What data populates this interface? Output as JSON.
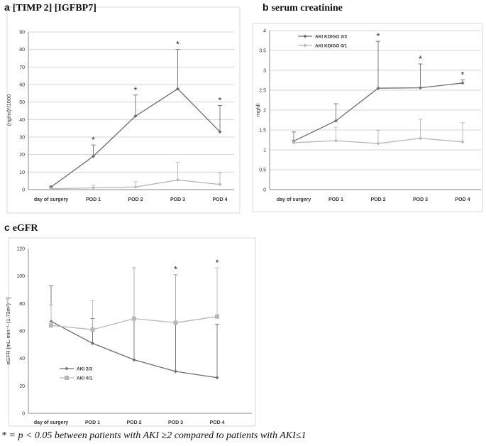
{
  "footnote": "* = p < 0.05 between patients with AKI ≥2 compared to patients with AKI≤1",
  "colors": {
    "dark": "#6d6d6d",
    "light": "#b7b7b7",
    "grid": "#d4d4d4",
    "axis": "#888888"
  },
  "chart_data": [
    {
      "panel_letter": "a",
      "title": "[TIMP 2] [IGFBP7]",
      "type": "line",
      "categories": [
        "day of surgery",
        "POD 1",
        "POD 2",
        "POD 3",
        "POD 4"
      ],
      "ylabel": "(ng/ml)²/1000",
      "ylim": [
        0,
        90
      ],
      "yticks": [
        0,
        10,
        20,
        30,
        40,
        50,
        60,
        70,
        80,
        90
      ],
      "ytick_labels": [
        "0",
        "10",
        "20",
        "30",
        "40",
        "50",
        "60",
        "70",
        "80",
        "90"
      ],
      "grid": true,
      "legend": null,
      "series": [
        {
          "color": "dark",
          "marker": "diamond",
          "values": [
            1.5,
            19,
            42,
            57.5,
            33
          ],
          "err_upper": [
            2,
            25.5,
            54,
            80,
            48
          ]
        },
        {
          "color": "light",
          "marker": "diamond",
          "values": [
            0.5,
            1,
            1.5,
            5.5,
            3
          ],
          "err_upper": [
            1,
            2.5,
            4.5,
            15.5,
            9.5
          ]
        }
      ],
      "significance": [
        "",
        "*",
        "*",
        "*",
        "*"
      ]
    },
    {
      "panel_letter": "b",
      "title": "serum creatinine",
      "type": "line",
      "categories": [
        "day of surgery",
        "POD 1",
        "POD 2",
        "POD 3",
        "POD 4"
      ],
      "ylabel": "mg/dl",
      "ylim": [
        0,
        4
      ],
      "yticks": [
        0,
        0.5,
        1,
        1.5,
        2,
        2.5,
        3,
        3.5,
        4
      ],
      "ytick_labels": [
        "0",
        "0,5",
        "1",
        "1,5",
        "2",
        "2,5",
        "3",
        "3,5",
        "4"
      ],
      "grid": true,
      "legend": "top-left",
      "series": [
        {
          "name": "AKI KDIGO 2/3",
          "color": "dark",
          "marker": "diamond",
          "values": [
            1.22,
            1.73,
            2.55,
            2.56,
            2.68
          ],
          "err_upper": [
            1.45,
            2.16,
            3.73,
            3.16,
            2.76
          ]
        },
        {
          "name": "AKI KDIGO 0/1",
          "color": "light",
          "marker": "diamond",
          "values": [
            1.18,
            1.23,
            1.16,
            1.29,
            1.2
          ],
          "err_upper": [
            1.25,
            1.57,
            1.49,
            1.77,
            1.68
          ]
        }
      ],
      "significance": [
        "",
        "",
        "*",
        "*",
        "*"
      ]
    },
    {
      "panel_letter": "c",
      "title": "eGFR",
      "type": "line",
      "categories": [
        "day of surgery",
        "POD 1",
        "POD 2",
        "POD 3",
        "POD 4"
      ],
      "ylabel": "eGFR [mL·min⁻¹·(1.73m²)⁻¹]",
      "ylim": [
        0,
        120
      ],
      "yticks": [
        0,
        20,
        40,
        60,
        80,
        100,
        120
      ],
      "ytick_labels": [
        "0",
        "20",
        "40",
        "60",
        "80",
        "100",
        "120"
      ],
      "grid": false,
      "legend": "bottom-left",
      "series": [
        {
          "name": "AKI 2/3",
          "color": "dark",
          "marker": "diamond",
          "values": [
            67,
            51,
            39,
            30.5,
            26
          ],
          "err_upper": [
            93,
            69,
            106,
            101,
            65
          ]
        },
        {
          "name": "AKI 0/1",
          "color": "light",
          "marker": "square",
          "values": [
            64,
            61,
            69,
            66,
            70.5
          ],
          "err_upper": [
            79,
            82,
            106,
            101,
            106
          ]
        }
      ],
      "significance": [
        "",
        "",
        "",
        "*",
        "*"
      ]
    }
  ]
}
